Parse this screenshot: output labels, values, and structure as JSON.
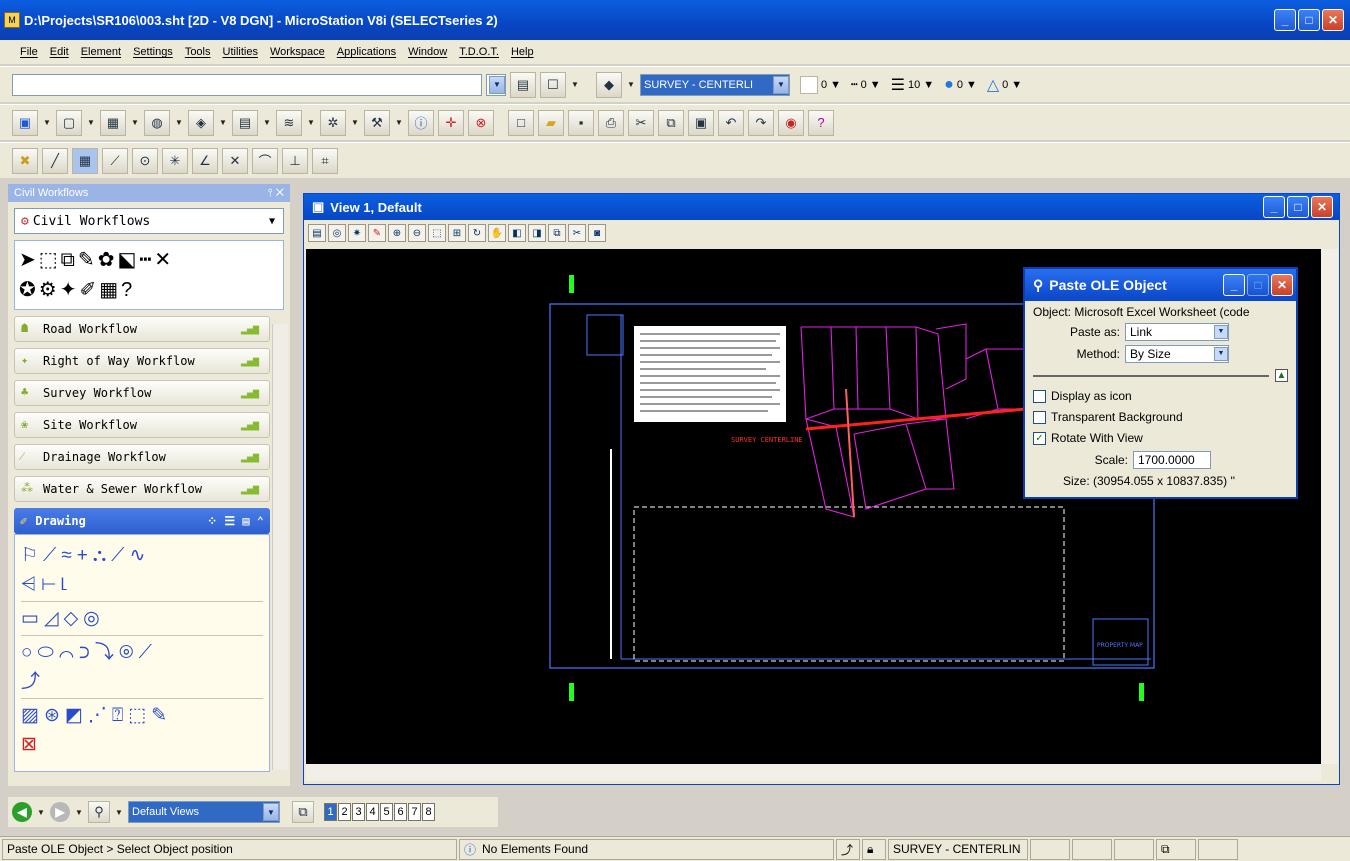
{
  "title": "D:\\Projects\\SR106\\003.sht [2D - V8 DGN] - MicroStation V8i (SELECTseries 2)",
  "menu": [
    "File",
    "Edit",
    "Element",
    "Settings",
    "Tools",
    "Utilities",
    "Workspace",
    "Applications",
    "Window",
    "T.D.O.T.",
    "Help"
  ],
  "attributes": {
    "level": "SURVEY - CENTERLI",
    "color": "0",
    "style": "0",
    "weight": "10",
    "transparency": "0",
    "priority": "0"
  },
  "sidebar": {
    "header": "Civil Workflows",
    "combo": "Civil Workflows",
    "workflows": [
      "Road Workflow",
      "Right of Way Workflow",
      "Survey Workflow",
      "Site Workflow",
      "Drainage Workflow",
      "Water & Sewer Workflow"
    ],
    "drawing": "Drawing"
  },
  "view": {
    "title": "View 1, Default"
  },
  "dialog": {
    "title": "Paste OLE Object",
    "object": "Object: Microsoft Excel Worksheet (code",
    "paste_as_label": "Paste as:",
    "paste_as": "Link",
    "method_label": "Method:",
    "method": "By Size",
    "display_as_icon": "Display as icon",
    "transparent_bg": "Transparent Background",
    "rotate": "Rotate With View",
    "scale_label": "Scale:",
    "scale": "1700.0000",
    "size": "Size: (30954.055 x 10837.835) ''"
  },
  "viewgroups": {
    "combo": "Default Views",
    "numbers": [
      "1",
      "2",
      "3",
      "4",
      "5",
      "6",
      "7",
      "8"
    ]
  },
  "status": {
    "prompt": "Paste OLE Object > Select Object position",
    "message": "No Elements Found",
    "level": "SURVEY - CENTERLIN"
  },
  "drawing_labels": {
    "map": "PROPERTY MAP",
    "note": "SURVEY CENTERLINE"
  }
}
